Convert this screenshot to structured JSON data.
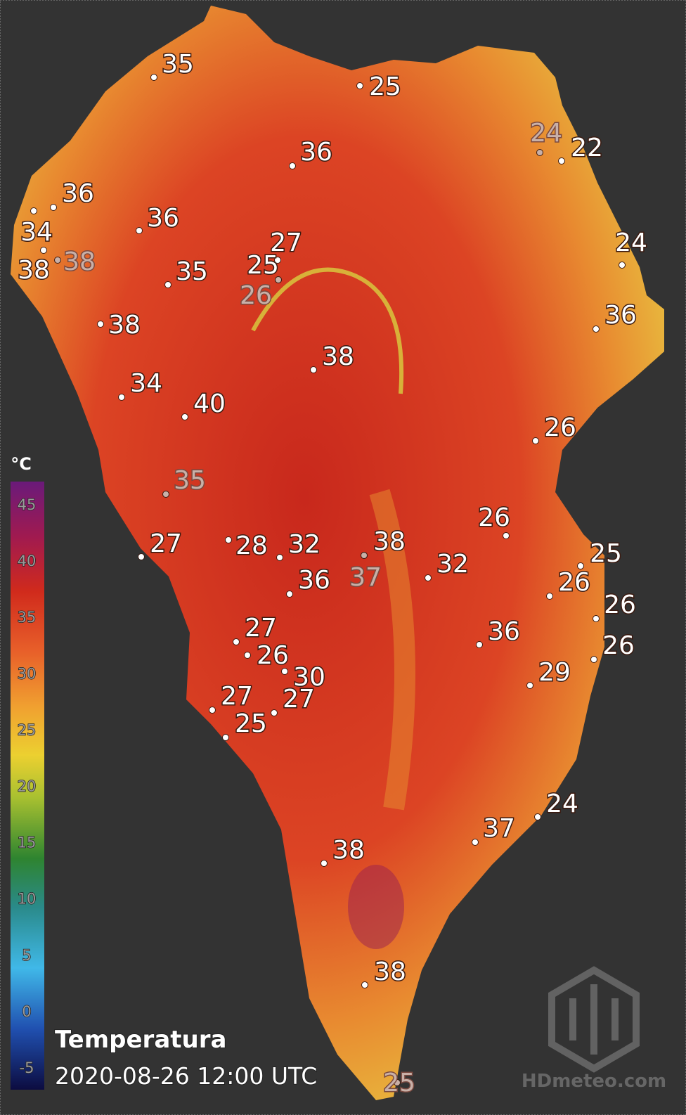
{
  "map": {
    "title": "Temperatura",
    "timestamp": "2020-08-26 12:00 UTC",
    "watermark": "HDmeteo.com",
    "colorbar": {
      "unit": "°C",
      "range": [
        -7,
        47
      ],
      "ticks": [
        -5,
        0,
        5,
        10,
        15,
        20,
        25,
        30,
        35,
        40,
        45
      ]
    },
    "stations": [
      {
        "value": 35
      },
      {
        "value": 25
      },
      {
        "value": 24,
        "faded": true
      },
      {
        "value": 22
      },
      {
        "value": 36
      },
      {
        "value": 36
      },
      {
        "value": 34
      },
      {
        "value": 38
      },
      {
        "value": 38,
        "faded": true
      },
      {
        "value": 36
      },
      {
        "value": 27
      },
      {
        "value": 25
      },
      {
        "value": 26,
        "faded": true
      },
      {
        "value": 35
      },
      {
        "value": 24
      },
      {
        "value": 36
      },
      {
        "value": 38
      },
      {
        "value": 38
      },
      {
        "value": 34
      },
      {
        "value": 40
      },
      {
        "value": 26
      },
      {
        "value": 35,
        "faded": true
      },
      {
        "value": 26
      },
      {
        "value": 27
      },
      {
        "value": 28
      },
      {
        "value": 32
      },
      {
        "value": 38
      },
      {
        "value": 37,
        "faded": true
      },
      {
        "value": 36
      },
      {
        "value": 32
      },
      {
        "value": 25
      },
      {
        "value": 26
      },
      {
        "value": 26
      },
      {
        "value": 36
      },
      {
        "value": 26
      },
      {
        "value": 27
      },
      {
        "value": 26
      },
      {
        "value": 30
      },
      {
        "value": 29
      },
      {
        "value": 27
      },
      {
        "value": 27
      },
      {
        "value": 25
      },
      {
        "value": 24
      },
      {
        "value": 37
      },
      {
        "value": 38
      },
      {
        "value": 38
      },
      {
        "value": 25,
        "faded": true
      }
    ]
  }
}
